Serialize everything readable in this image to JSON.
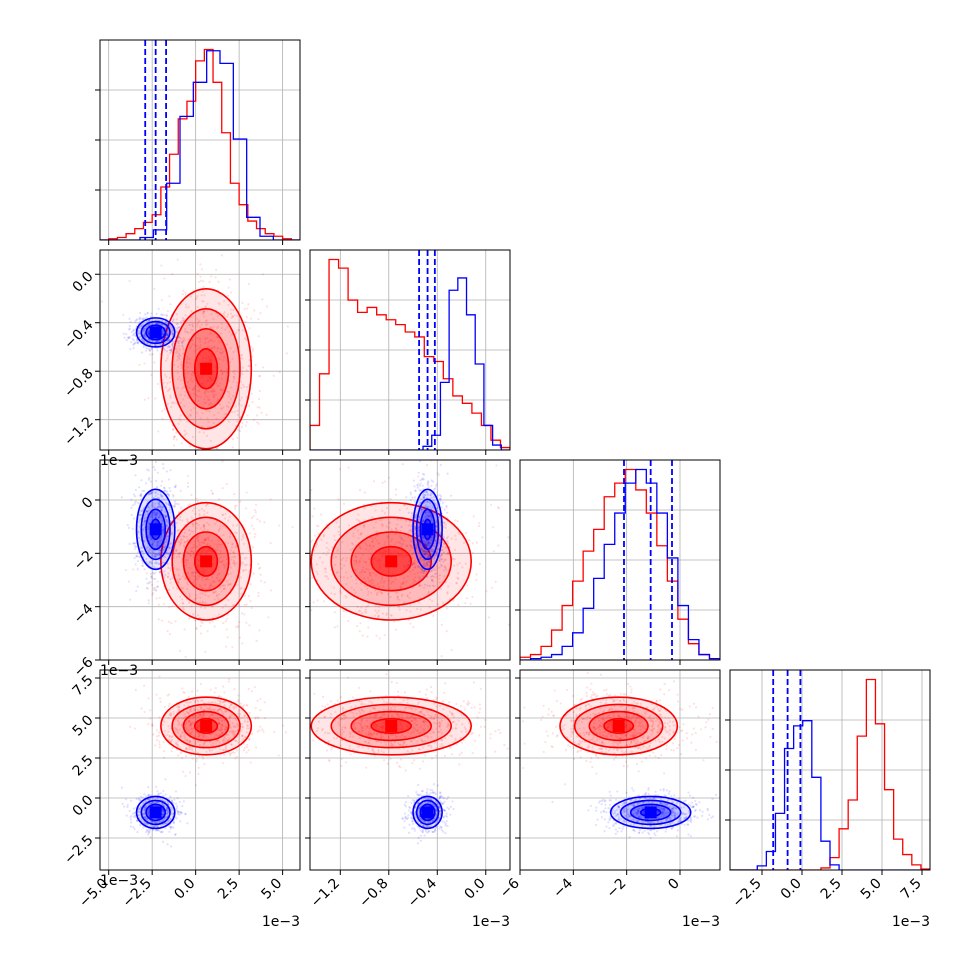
{
  "chart_data": {
    "type": "scatter",
    "colors": {
      "red": "#ff0000",
      "blue": "#0000ff",
      "grid": "#b0b0b0",
      "frame": "#000000"
    },
    "grid": true,
    "parameters": [
      {
        "id": "p1",
        "xlim": [
          -5.5,
          6.0
        ],
        "ticks": [
          -5.0,
          -2.5,
          0.0,
          2.5,
          5.0
        ],
        "tick_labels": [
          "−5.0",
          "−2.5",
          "0.0",
          "2.5",
          "5.0"
        ],
        "offset_label": "1e−3"
      },
      {
        "id": "p2",
        "xlim": [
          -1.45,
          0.2
        ],
        "ticks": [
          -1.2,
          -0.8,
          -0.4,
          0.0
        ],
        "tick_labels": [
          "−1.2",
          "−0.8",
          "−0.4",
          "0.0"
        ],
        "offset_label": "1e−3"
      },
      {
        "id": "p3",
        "xlim": [
          -6.0,
          1.5
        ],
        "ticks": [
          -6,
          -4,
          -2,
          0
        ],
        "tick_labels": [
          "−6",
          "−4",
          "−2",
          "0"
        ],
        "offset_label": "1e−3"
      },
      {
        "id": "p4",
        "xlim": [
          -4.5,
          8.0
        ],
        "ticks": [
          -2.5,
          0.0,
          2.5,
          5.0,
          7.5
        ],
        "tick_labels": [
          "−2.5",
          "0.0",
          "2.5",
          "5.0",
          "7.5"
        ],
        "offset_label": "1e−3"
      }
    ],
    "series": [
      {
        "color": "red",
        "means": [
          0.6,
          -0.78,
          -2.3,
          4.5
        ],
        "sds": [
          1.3,
          0.33,
          1.1,
          0.9
        ],
        "hist": [
          {
            "edges": [
              -5.5,
              6.0
            ],
            "values": [
              0,
              1,
              2,
              5,
              9,
              14,
              20,
              42,
              68,
              96,
              110,
              142,
              151,
              125,
              85,
              45,
              28,
              15,
              9,
              5,
              3,
              1,
              0
            ]
          },
          {
            "edges": [
              -1.45,
              0.2
            ],
            "values": [
              20,
              62,
              155,
              148,
              122,
              112,
              116,
              110,
              106,
              102,
              96,
              92,
              76,
              72,
              58,
              44,
              38,
              30,
              20,
              8,
              2
            ]
          },
          {
            "edges": [
              -6.0,
              1.5
            ],
            "values": [
              2,
              4,
              10,
              22,
              40,
              58,
              80,
              96,
              120,
              130,
              140,
              125,
              108,
              84,
              58,
              30,
              12,
              4,
              1
            ]
          },
          {
            "edges": [
              -4.5,
              8.0
            ],
            "values": [
              0,
              0,
              0,
              0,
              0,
              0,
              0,
              0,
              0,
              0,
              2,
              12,
              40,
              68,
              130,
              185,
              142,
              78,
              30,
              15,
              5,
              1
            ]
          }
        ]
      },
      {
        "color": "blue",
        "means": [
          -2.3,
          -0.48,
          -1.1,
          -0.9
        ],
        "sds": [
          0.55,
          0.06,
          0.75,
          0.5
        ],
        "hist": [
          {
            "edges": [
              -5.5,
              6.0
            ],
            "values": [
              0,
              0,
              0,
              2,
              8,
              45,
              98,
              125,
              150,
              140,
              80,
              18,
              3,
              0,
              0
            ]
          },
          {
            "edges": [
              -1.45,
              0.2
            ],
            "values": [
              0,
              0,
              0,
              0,
              0,
              0,
              0,
              0,
              0,
              0,
              0,
              0,
              0,
              3,
              12,
              55,
              130,
              140,
              110,
              70,
              20,
              4,
              0
            ]
          },
          {
            "edges": [
              -6.0,
              1.5
            ],
            "values": [
              0,
              1,
              2,
              4,
              10,
              20,
              38,
              60,
              85,
              108,
              130,
              140,
              130,
              108,
              75,
              40,
              15,
              4,
              1
            ]
          },
          {
            "edges": [
              -4.5,
              8.0
            ],
            "values": [
              0,
              0,
              0,
              4,
              18,
              55,
              118,
              140,
              145,
              90,
              28,
              5,
              0,
              0,
              0,
              0,
              0,
              0,
              0,
              0,
              0,
              0
            ]
          }
        ],
        "quantile_lines": [
          [
            -2.9,
            -2.3,
            -1.7
          ],
          [
            -0.55,
            -0.48,
            -0.42
          ],
          [
            -2.1,
            -1.1,
            -0.3
          ],
          [
            -1.8,
            -0.9,
            -0.1
          ]
        ]
      }
    ]
  }
}
